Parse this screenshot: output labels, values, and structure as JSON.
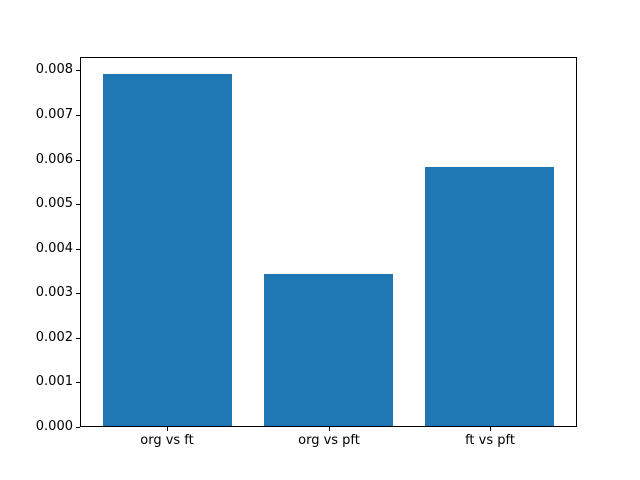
{
  "figure": {
    "background": "#ffffff"
  },
  "chart_data": {
    "type": "bar",
    "title": "",
    "xlabel": "",
    "ylabel": "",
    "categories": [
      "org vs ft",
      "org vs pft",
      "ft vs pft"
    ],
    "values": [
      0.0079,
      0.0034,
      0.0058
    ],
    "bar_color": "#1f77b4",
    "bar_width": 0.8,
    "x_positions": [
      0,
      1,
      2
    ],
    "xlim": [
      -0.54,
      2.54
    ],
    "ylim": [
      0,
      0.0083
    ],
    "ytick_labels": [
      "0.000",
      "0.001",
      "0.002",
      "0.003",
      "0.004",
      "0.005",
      "0.006",
      "0.007",
      "0.008"
    ],
    "grid": false,
    "legend": "none",
    "spine_color": "#000000",
    "tick_color": "#000000"
  }
}
